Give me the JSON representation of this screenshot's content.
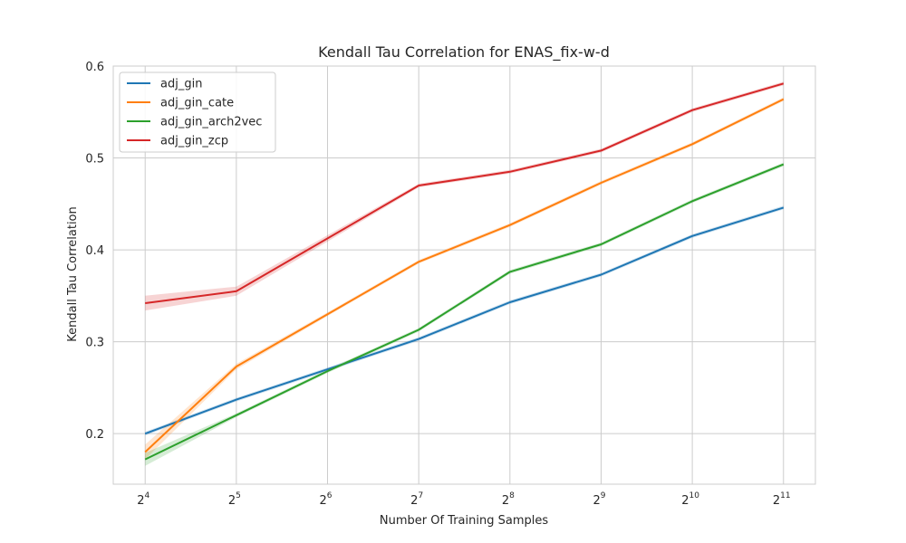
{
  "chart_data": {
    "type": "line",
    "title": "Kendall Tau Correlation for ENAS_fix-w-d",
    "xlabel": "Number Of Training Samples",
    "ylabel": "Kendall Tau Correlation",
    "x_scale": "log2",
    "x": [
      16,
      32,
      64,
      128,
      256,
      512,
      1024,
      2048
    ],
    "x_tick_labels": [
      {
        "base": "2",
        "exp": "4"
      },
      {
        "base": "2",
        "exp": "5"
      },
      {
        "base": "2",
        "exp": "6"
      },
      {
        "base": "2",
        "exp": "7"
      },
      {
        "base": "2",
        "exp": "8"
      },
      {
        "base": "2",
        "exp": "9"
      },
      {
        "base": "2",
        "exp": "10"
      },
      {
        "base": "2",
        "exp": "11"
      }
    ],
    "y_ticks": [
      0.2,
      0.3,
      0.4,
      0.5,
      0.6
    ],
    "y_tick_labels": [
      "0.2",
      "0.3",
      "0.4",
      "0.5",
      "0.6"
    ],
    "ylim": [
      0.145,
      0.6
    ],
    "grid": true,
    "legend_position": "top-left",
    "series": [
      {
        "name": "adj_gin",
        "color": "#1f77b4",
        "x": [
          16,
          32,
          64,
          128,
          256,
          512,
          1024,
          2048
        ],
        "values": [
          0.2,
          0.237,
          0.27,
          0.303,
          0.343,
          0.373,
          0.415,
          0.446
        ],
        "band": [
          0.002,
          0.002,
          0.002,
          0.002,
          0.002,
          0.002,
          0.002,
          0.002
        ]
      },
      {
        "name": "adj_gin_cate",
        "color": "#ff7f0e",
        "x": [
          16,
          32,
          64,
          128,
          256,
          512,
          1024,
          2048
        ],
        "values": [
          0.18,
          0.273,
          0.33,
          0.387,
          0.427,
          0.473,
          0.515,
          0.564
        ],
        "band": [
          0.008,
          0.003,
          0.002,
          0.002,
          0.002,
          0.002,
          0.002,
          0.002
        ]
      },
      {
        "name": "adj_gin_arch2vec",
        "color": "#2ca02c",
        "x": [
          16,
          32,
          64,
          128,
          256,
          512,
          1024,
          2048
        ],
        "values": [
          0.172,
          0.22,
          0.268,
          0.313,
          0.376,
          0.406,
          0.453,
          0.493
        ],
        "band": [
          0.007,
          0.002,
          0.002,
          0.002,
          0.002,
          0.002,
          0.002,
          0.002
        ]
      },
      {
        "name": "adj_gin_zcp",
        "color": "#d62728",
        "x": [
          16,
          32,
          128,
          256,
          512,
          1024,
          2048
        ],
        "values": [
          0.342,
          0.355,
          0.47,
          0.485,
          0.508,
          0.552,
          0.581
        ],
        "band": [
          0.008,
          0.005,
          0.002,
          0.002,
          0.002,
          0.002,
          0.002
        ]
      }
    ]
  }
}
